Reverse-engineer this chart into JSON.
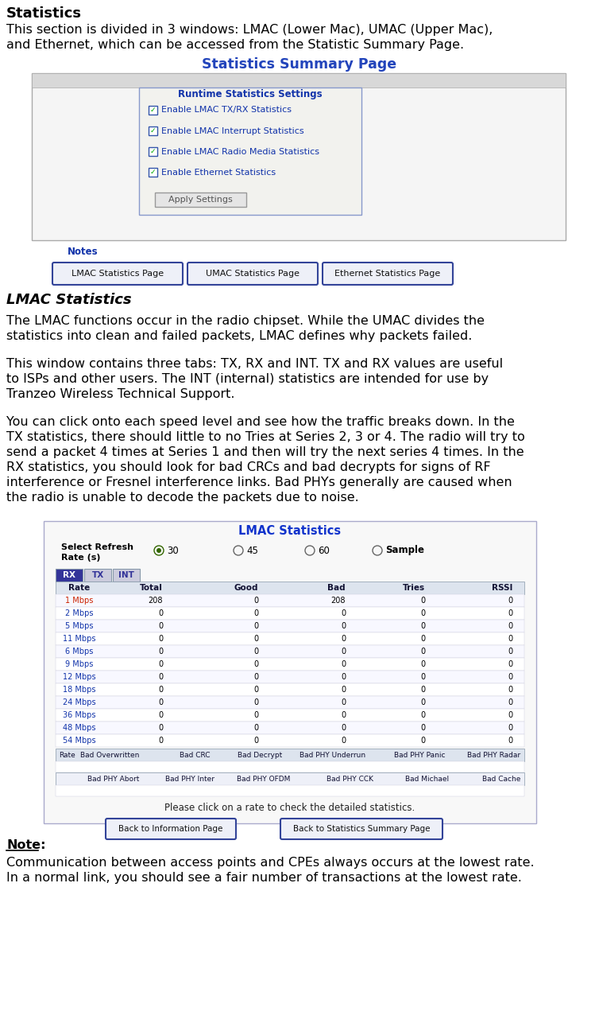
{
  "title": "Statistics",
  "bg_color": "#ffffff",
  "blue_heading_color": "#2244bb",
  "lmac_blue": "#2244cc",
  "para1_line1": "This section is divided in 3 windows: LMAC (Lower Mac), UMAC (Upper Mac),",
  "para1_line2": "and Ethernet, which can be accessed from the Statistic Summary Page.",
  "summary_page_title": "Statistics Summary Page",
  "runtime_box_title": "Runtime Statistics Settings",
  "checkboxes": [
    "Enable LMAC TX/RX Statistics",
    "Enable LMAC Interrupt Statistics",
    "Enable LMAC Radio Media Statistics",
    "Enable Ethernet Statistics"
  ],
  "apply_btn": "Apply Settings",
  "notes_label": "Notes",
  "nav_buttons": [
    "LMAC Statistics Page",
    "UMAC Statistics Page",
    "Ethernet Statistics Page"
  ],
  "lmac_heading": "LMAC Statistics",
  "lmac_para1_line1": "The LMAC functions occur in the radio chipset. While the UMAC divides the",
  "lmac_para1_line2": "statistics into clean and failed packets, LMAC defines why packets failed.",
  "lmac_para2_line1": "This window contains three tabs: TX, RX and INT. TX and RX values are useful",
  "lmac_para2_line2": "to ISPs and other users. The INT (internal) statistics are intended for use by",
  "lmac_para2_line3": "Tranzeo Wireless Technical Support.",
  "lmac_para3_line1": "You can click onto each speed level and see how the traffic breaks down. In the",
  "lmac_para3_line2": "TX statistics, there should little to no Tries at Series 2, 3 or 4. The radio will try to",
  "lmac_para3_line3": "send a packet 4 times at Series 1 and then will try the next series 4 times. In the",
  "lmac_para3_line4": "RX statistics, you should look for bad CRCs and bad decrypts for signs of RF",
  "lmac_para3_line5": "interference or Fresnel interference links. Bad PHYs generally are caused when",
  "lmac_para3_line6": "the radio is unable to decode the packets due to noise.",
  "lmac_stats_title": "LMAC Statistics",
  "rates": [
    "1 Mbps",
    "2 Mbps",
    "5 Mbps",
    "11 Mbps",
    "6 Mbps",
    "9 Mbps",
    "12 Mbps",
    "18 Mbps",
    "24 Mbps",
    "36 Mbps",
    "48 Mbps",
    "54 Mbps"
  ],
  "row0_vals": [
    "208",
    "0",
    "208",
    "0",
    "0"
  ],
  "row_other_vals": [
    "0",
    "0",
    "0",
    "0",
    "0"
  ],
  "table_headers": [
    "Rate",
    "Total",
    "Good",
    "Bad",
    "Tries",
    "RSSI"
  ],
  "bad_row1": [
    "Rate",
    "Bad Overwritten",
    "Bad CRC",
    "Bad Decrypt",
    "Bad PHY Underrun",
    "Bad PHY Panic",
    "Bad PHY Radar"
  ],
  "bad_row2": [
    "Bad PHY Abort",
    "Bad PHY Inter",
    "Bad PHY OFDM",
    "Bad PHY CCK",
    "Bad Michael",
    "Bad Cache"
  ],
  "click_text": "Please click on a rate to check the detailed statistics.",
  "bot_btns": [
    "Back to Information Page",
    "Back to Statistics Summary Page"
  ],
  "note_heading": "Note:",
  "note_line1": "Communication between access points and CPEs always occurs at the lowest rate.",
  "note_line2": "In a normal link, you should see a fair number of transactions at the lowest rate.",
  "tab_labels": [
    "RX",
    "TX",
    "INT"
  ],
  "refresh_labels": [
    "30",
    "45",
    "60",
    "Sample"
  ],
  "select_refresh_line1": "Select Refresh",
  "select_refresh_line2": "Rate (s)"
}
